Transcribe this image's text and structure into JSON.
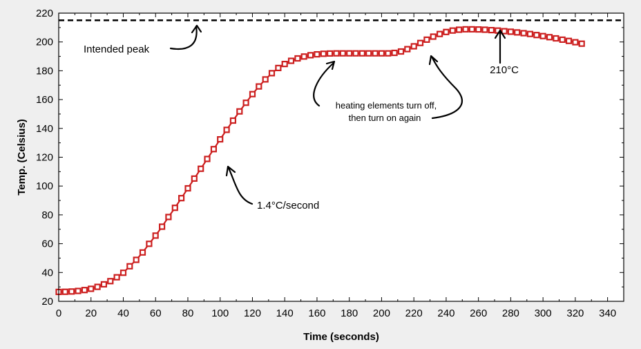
{
  "chart_data": {
    "type": "line",
    "xlabel": "Time (seconds)",
    "ylabel": "Temp. (Celsius)",
    "xlim": [
      0,
      350
    ],
    "ylim": [
      20,
      220
    ],
    "xticks": [
      0,
      20,
      40,
      60,
      80,
      100,
      120,
      140,
      160,
      180,
      200,
      220,
      240,
      260,
      280,
      300,
      320,
      340
    ],
    "yticks": [
      20,
      40,
      60,
      80,
      100,
      120,
      140,
      160,
      180,
      200,
      220
    ],
    "grid": false,
    "series": [
      {
        "color": "#cc1f1f",
        "marker": "square-open",
        "points": [
          [
            0,
            26.5
          ],
          [
            4,
            26.6
          ],
          [
            8,
            26.8
          ],
          [
            12,
            27.2
          ],
          [
            16,
            27.8
          ],
          [
            20,
            28.7
          ],
          [
            24,
            30
          ],
          [
            28,
            31.8
          ],
          [
            32,
            34
          ],
          [
            36,
            36.7
          ],
          [
            40,
            39.8
          ],
          [
            44,
            44.3
          ],
          [
            48,
            48.8
          ],
          [
            52,
            53.9
          ],
          [
            56,
            59.9
          ],
          [
            60,
            65.6
          ],
          [
            64,
            71.8
          ],
          [
            68,
            78.5
          ],
          [
            72,
            84.9
          ],
          [
            76,
            91.6
          ],
          [
            80,
            98.4
          ],
          [
            84,
            105.2
          ],
          [
            88,
            112
          ],
          [
            92,
            118.8
          ],
          [
            96,
            125.6
          ],
          [
            100,
            132.4
          ],
          [
            104,
            139
          ],
          [
            108,
            145.4
          ],
          [
            112,
            151.8
          ],
          [
            116,
            157.8
          ],
          [
            120,
            163.8
          ],
          [
            124,
            169.1
          ],
          [
            128,
            174
          ],
          [
            132,
            178.3
          ],
          [
            136,
            181.9
          ],
          [
            140,
            184.7
          ],
          [
            144,
            186.9
          ],
          [
            148,
            188.6
          ],
          [
            152,
            189.9
          ],
          [
            156,
            190.8
          ],
          [
            160,
            191.4
          ],
          [
            164,
            191.8
          ],
          [
            168,
            192
          ],
          [
            172,
            192.1
          ],
          [
            176,
            192.1
          ],
          [
            180,
            192.1
          ],
          [
            184,
            192.1
          ],
          [
            188,
            192.1
          ],
          [
            192,
            192.1
          ],
          [
            196,
            192.1
          ],
          [
            200,
            192.1
          ],
          [
            204,
            192.1
          ],
          [
            208,
            192.4
          ],
          [
            212,
            193.4
          ],
          [
            216,
            195
          ],
          [
            220,
            197
          ],
          [
            224,
            199.3
          ],
          [
            228,
            201.6
          ],
          [
            232,
            203.7
          ],
          [
            236,
            205.5
          ],
          [
            240,
            206.9
          ],
          [
            244,
            207.9
          ],
          [
            248,
            208.5
          ],
          [
            252,
            208.8
          ],
          [
            256,
            208.8
          ],
          [
            260,
            208.7
          ],
          [
            264,
            208.5
          ],
          [
            268,
            208.2
          ],
          [
            272,
            207.9
          ],
          [
            276,
            207.5
          ],
          [
            280,
            207.1
          ],
          [
            284,
            206.6
          ],
          [
            288,
            206.1
          ],
          [
            292,
            205.5
          ],
          [
            296,
            204.8
          ],
          [
            300,
            204.1
          ],
          [
            304,
            203.3
          ],
          [
            308,
            202.5
          ],
          [
            312,
            201.6
          ],
          [
            316,
            200.7
          ],
          [
            320,
            199.8
          ],
          [
            324,
            198.8
          ]
        ]
      }
    ],
    "reference_line": {
      "y": 215,
      "style": "dashed",
      "color": "#000000"
    },
    "annotations": [
      {
        "text": "Intended peak",
        "target": [
          86,
          215
        ]
      },
      {
        "text": "1.4°C/second",
        "target": [
          104,
          114
        ]
      },
      {
        "text_lines": [
          "heating elements turn off,",
          "then turn on again"
        ],
        "targets": [
          [
            170,
            190
          ],
          [
            230,
            193
          ]
        ]
      },
      {
        "text": "210°C",
        "target": [
          272,
          210
        ]
      }
    ]
  }
}
